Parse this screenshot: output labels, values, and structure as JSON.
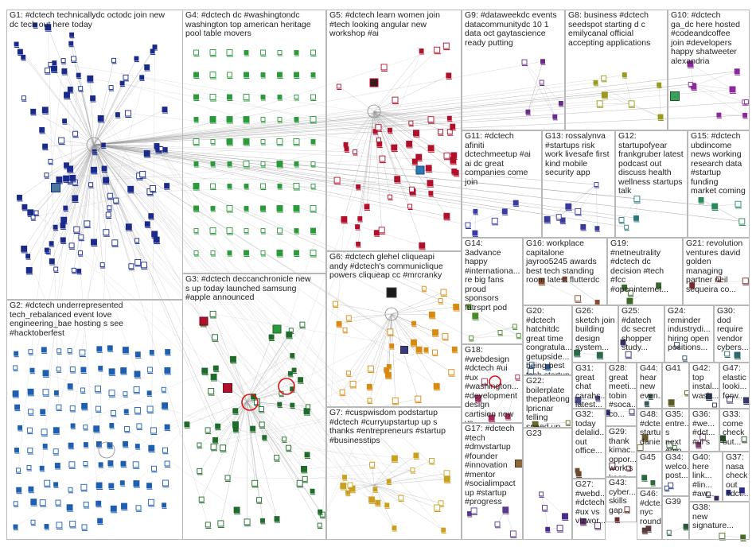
{
  "groups": [
    {
      "id": "G1",
      "label": "G1: #dctech technicallydc octodc join new\ndc tech out here today",
      "color": "#1a2a8a"
    },
    {
      "id": "G2",
      "label": "G2: #dctech underrepresented\ntech_rebalanced event love\nengineering_bae hosting s see\n#hacktoberfest",
      "color": "#1f5fb0"
    },
    {
      "id": "G3",
      "label": "G3: #dctech deccanchronicle new\ns up today launched samsung\n#apple announced",
      "color": "#1e6b2a"
    },
    {
      "id": "G4",
      "label": "G4: #dctech dc #washingtondc\nwashington top american heritage\npool table movers",
      "color": "#2a9a3a"
    },
    {
      "id": "G5",
      "label": "G5: #dctech learn women join\n#tech looking angular new\nworkshop #ai",
      "color": "#b0102a"
    },
    {
      "id": "G6",
      "label": "G6: #dctech glehel cliqueapi\nandy #dctech's communiclique\npowers cliqueap cc #mrcranky",
      "color": "#d88a10"
    },
    {
      "id": "G7",
      "label": "G7: #cuspwisdom podstartup\n#dctech #curryupstartup up s\nthanks #entrepreneurs #startup\n#businesstips",
      "color": "#c9a020"
    },
    {
      "id": "G8",
      "label": "G8: business #dctech\nseedspot starting d c\nemilycanal official\naccepting applications",
      "color": "#9a9a20"
    },
    {
      "id": "G9",
      "label": "G9: #dataweekdc events\ndatacommunitydc 10 1\ndata oct gaytascience\nready putting",
      "color": "#6a2a8a"
    },
    {
      "id": "G10",
      "label": "G10: #dctech\nga_dc here hosted\n#codeandcoffee\njoin #developers\nhappy shatweeter\nalexandria",
      "color": "#8a2a9a"
    },
    {
      "id": "G11",
      "label": "G11: #dctech\nafiniti\ndctechmeetup #ai\nai dc great\ncompanies come\njoin",
      "color": "#3a3aa0"
    },
    {
      "id": "G12",
      "label": "G12:\nstartupofyear\nfrankgruber latest\npodcast out\ndiscuss health\nwellness startups\ntalk",
      "color": "#2a7a7a"
    },
    {
      "id": "G13",
      "label": "G13: rossalynva\n#startups risk\nwork livesafe first\nkind mobile\nsecurity app",
      "color": "#3a3a9a"
    },
    {
      "id": "G14",
      "label": "G14:\n3advance\nhappy\n#internationa...\nre big fans\nproud\nsponsors\nfutrsprt pod",
      "color": "#4a8a2a"
    },
    {
      "id": "G15",
      "label": "G15: #dctech\nubdincome\nnews working\nresearch data\n#startup\nfunding\nmarket coming",
      "color": "#2a8a5a"
    },
    {
      "id": "G16",
      "label": "G16: workplace\ncapitalone\njayroo5245 awards\nbest tech standing\nroom latest flutterdc",
      "color": "#8a4a2a"
    },
    {
      "id": "G17",
      "label": "G17: #dctech\n#tech\n#dmvstartup\n#founder\n#innovation\n#mentor\n#socialimpact\nup #startup\n#progress",
      "color": "#5a3a8a"
    },
    {
      "id": "G18",
      "label": "G18:\n#webdesign\n#dctech #ui\n#ux\n#washington...\n#development\ndesign\ncartisien new\nvs",
      "color": "#a02a5a"
    },
    {
      "id": "G19",
      "label": "G19:\n#netneutrality\n#dctech dc\ndecision #tech\n#fcc\n#openinternet...",
      "color": "#3a6a2a"
    },
    {
      "id": "G20",
      "label": "G20:\n#dctech\nhatchitdc\ngreat time\ncongratula...\ngetupside...\nbeing best\ntech startup",
      "color": "#2a5a8a"
    },
    {
      "id": "G21",
      "label": "G21: revolution\nventures david\ngolden\nmanaging\npartner neil\nsequeira co...",
      "color": "#7a2a2a"
    },
    {
      "id": "G22",
      "label": "G22:\nboilerplate\nthepatleong\nlpricnar\ntelling\nspeed up\ndelivery...",
      "color": "#6a6a2a"
    },
    {
      "id": "G23",
      "label": "G23",
      "color": "#4a2a8a"
    },
    {
      "id": "G24",
      "label": "G24:\nreminder\nindustrydi...\nhiring open\npositions...",
      "color": "#2a4a6a"
    },
    {
      "id": "G25",
      "label": "G25:\n#datech\ndc secret\nshopper\nstudy...",
      "color": "#3a2a6a"
    },
    {
      "id": "G26",
      "label": "G26:\nsketch join\nbuilding\ndesign\nsystem...",
      "color": "#2a6a4a"
    },
    {
      "id": "G27",
      "label": "G27:\n#webd...\n#dctech\n#ux vs\nvizwor...",
      "color": "#5a2a6a"
    },
    {
      "id": "G28",
      "label": "G28:\ngreat\nmeeti...\ntobin\n#soca...\nco...",
      "color": "#2a2a6a"
    },
    {
      "id": "G29",
      "label": "G29:\nthank\nkimac...\noppor...\nwork s\nkeep...",
      "color": "#6a2a4a"
    },
    {
      "id": "G30",
      "label": "G30:\ndod\nrequire\nvendor\ncybers...",
      "color": "#2a6a6a"
    },
    {
      "id": "G31",
      "label": "G31:\ngreat\nchat\ncarahs...\nlatest...",
      "color": "#4a4a8a"
    },
    {
      "id": "G32",
      "label": "G32:\ntoday\ndelalid...\nout\noffice...",
      "color": "#6a4a2a"
    },
    {
      "id": "G33",
      "label": "G33:\ncome\ncheck\nout...",
      "color": "#2a4a2a"
    },
    {
      "id": "G34",
      "label": "G34:\nwelco...\npost...",
      "color": "#2a3a7a"
    },
    {
      "id": "G35",
      "label": "G35:\nentre...\ns next\nemp...",
      "color": "#3a6a3a"
    },
    {
      "id": "G36",
      "label": "G36:\n#we...\n#dct...\n#ui s",
      "color": "#7a3a6a"
    },
    {
      "id": "G37",
      "label": "G37:\nnasa\ncheck\nout\n#dct...",
      "color": "#2a2a8a"
    },
    {
      "id": "G38",
      "label": "G38:\nnew\nsignature...",
      "color": "#4a6a2a"
    },
    {
      "id": "G39",
      "label": "G39",
      "color": "#2a5a3a"
    },
    {
      "id": "G40",
      "label": "G40:\nhere\nlink...\n#lin...\n#aw...",
      "color": "#3a2a5a"
    },
    {
      "id": "G41",
      "label": "G41",
      "color": "#5a5a2a"
    },
    {
      "id": "G42",
      "label": "G42:\ntop\ninstal...\nwash...",
      "color": "#2a3a5a"
    },
    {
      "id": "G43",
      "label": "G43:\ncyber...\nskills\ngap...",
      "color": "#6a2a2a"
    },
    {
      "id": "G44",
      "label": "G44:\nhear\nnew\neven...",
      "color": "#3a5a5a"
    },
    {
      "id": "G45",
      "label": "G45",
      "color": "#2a6a3a"
    },
    {
      "id": "G46",
      "label": "G46:\n#dcte...\nnyc\nround",
      "color": "#5a3a3a"
    },
    {
      "id": "G47",
      "label": "G47:\nelastic\nlooki...\nforw...",
      "color": "#3a3a6a"
    },
    {
      "id": "G48",
      "label": "G48:\n#dcte...\nstartup\ndanie...",
      "color": "#6a5a2a"
    }
  ]
}
